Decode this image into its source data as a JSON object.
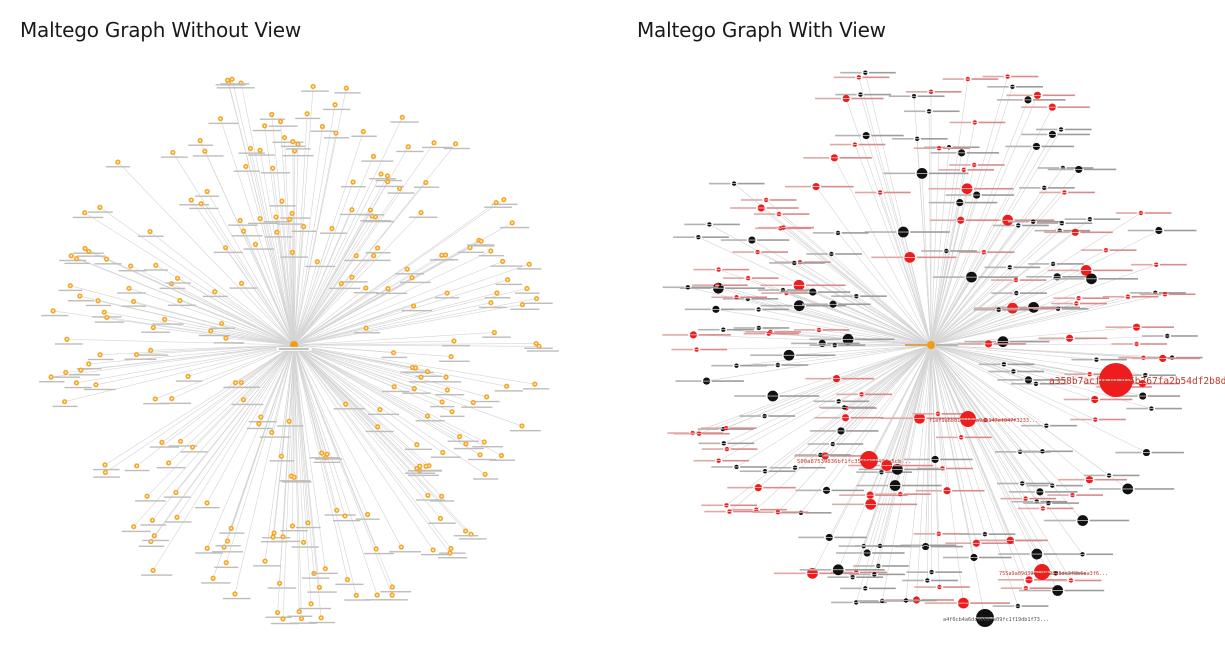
{
  "titles": {
    "left": "Maltego Graph Without View",
    "right": "Maltego Graph With View"
  },
  "colors": {
    "edge": "#d4d4d4",
    "entity_orange": "#f5a623",
    "center_orange": "#f39c12",
    "node_red": "#ee1c1c",
    "node_black": "#111111",
    "label_red": "#c0392b",
    "label_gray": "#555555"
  },
  "icons": {
    "left_nodes": "hash-entity-icon",
    "left_center": "center-entity-icon",
    "right_nodes": "circle-node-icon"
  },
  "graph_right_big_labels": [
    "a358b7acf9aeae5b767fa2b54df2b8d...",
    "500a87539836bf1fc35d4a5540fe5cb...",
    "f1ef9a6b0115603a9eb147ef047f3233...",
    "755a9a09d39c738f2808dc3f8b6aa3f6...",
    "a4f0cb4a6dc9eb17e09fc1f19db1f73..."
  ]
}
